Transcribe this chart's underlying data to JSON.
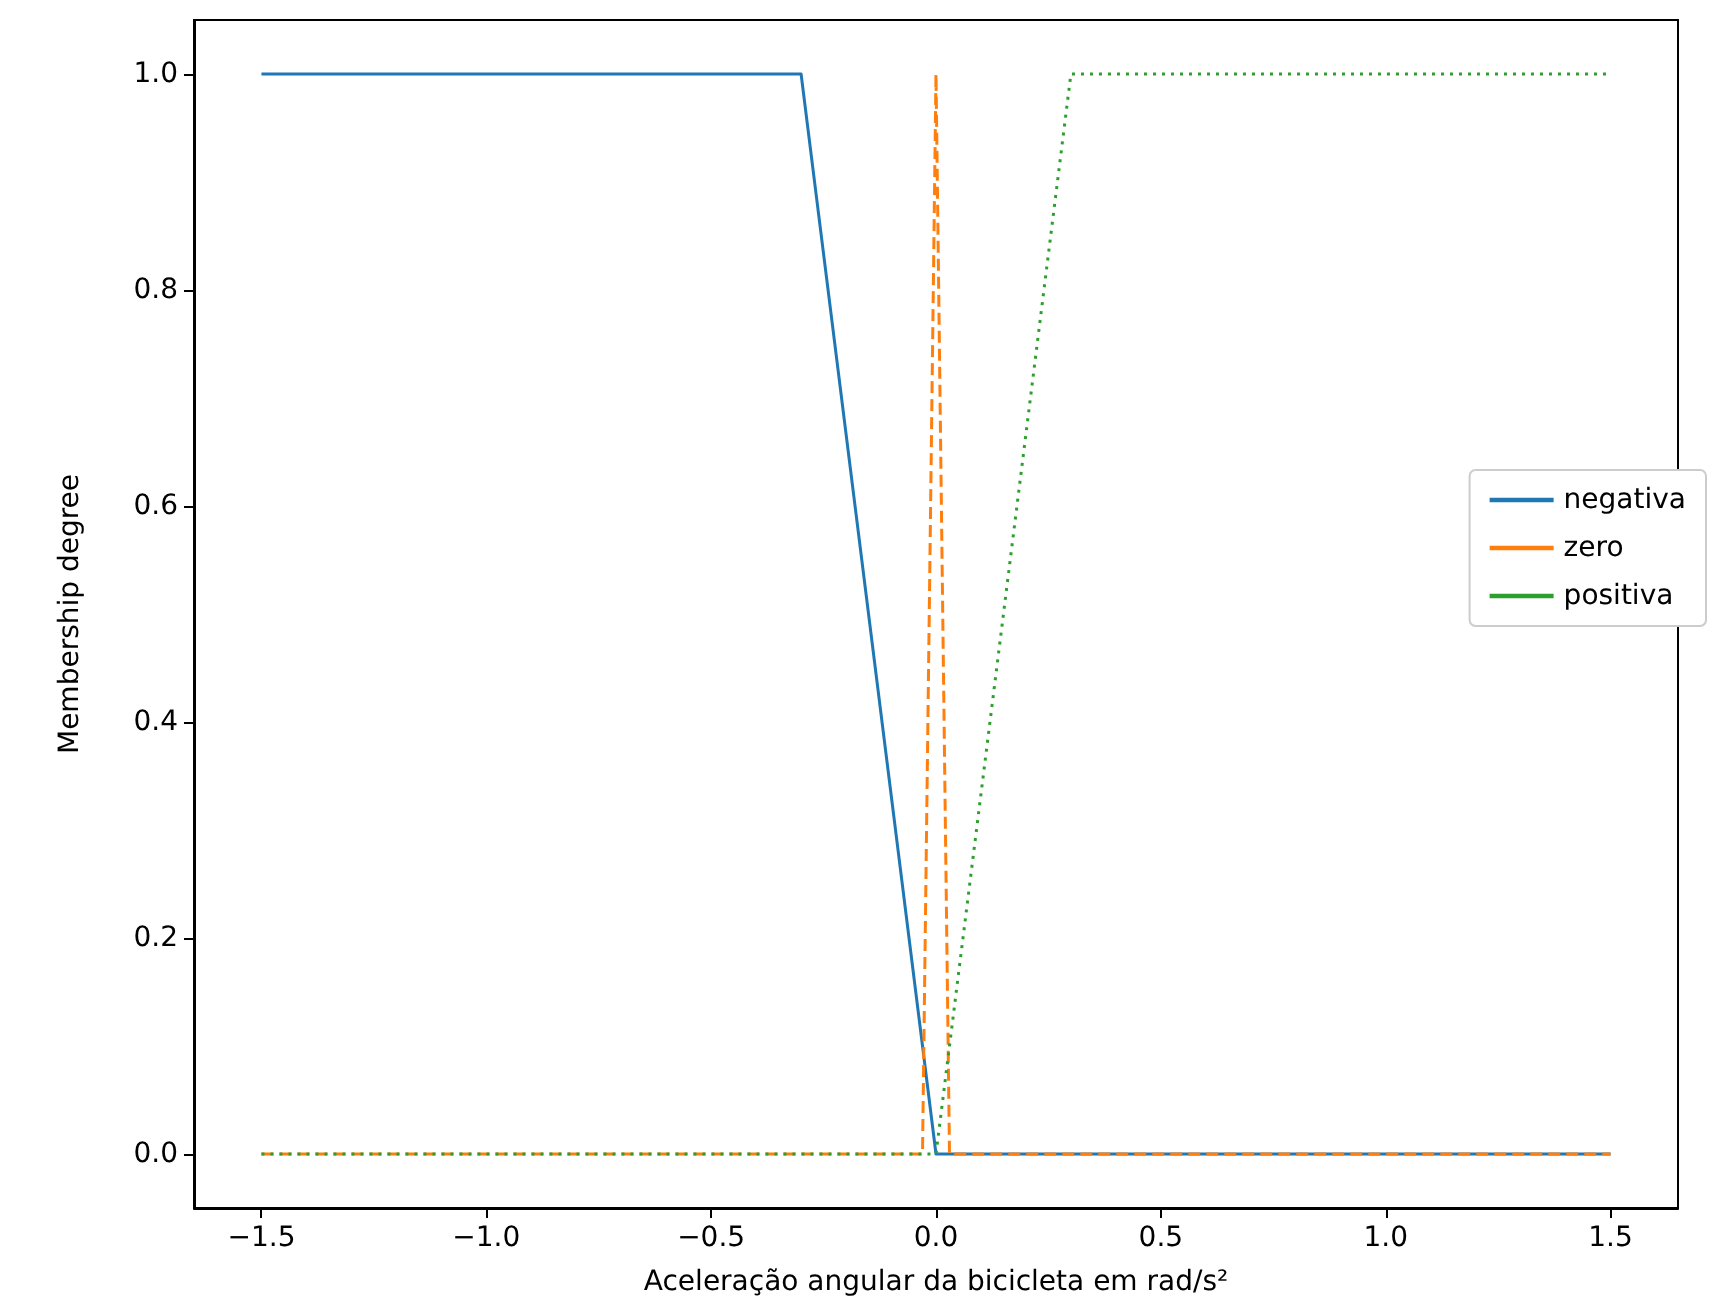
{
  "chart_data": {
    "type": "line",
    "xlabel": "Aceleração angular da bicicleta em rad/s²",
    "ylabel": "Membership degree",
    "xlim": [
      -1.65,
      1.65
    ],
    "ylim": [
      -0.05,
      1.05
    ],
    "xticks": [
      {
        "value": -1.5,
        "label": "−1.5"
      },
      {
        "value": -1.0,
        "label": "−1.0"
      },
      {
        "value": -0.5,
        "label": "−0.5"
      },
      {
        "value": 0,
        "label": "0.0"
      },
      {
        "value": 0.5,
        "label": "0.5"
      },
      {
        "value": 1.0,
        "label": "1.0"
      },
      {
        "value": 1.5,
        "label": "1.5"
      }
    ],
    "yticks": [
      {
        "value": 0,
        "label": "0.0"
      },
      {
        "value": 0.2,
        "label": "0.2"
      },
      {
        "value": 0.4,
        "label": "0.4"
      },
      {
        "value": 0.6,
        "label": "0.6"
      },
      {
        "value": 0.8,
        "label": "0.8"
      },
      {
        "value": 1.0,
        "label": "1.0"
      }
    ],
    "grid": false,
    "legend": "right",
    "marker": "none",
    "series": [
      {
        "name": "negativa",
        "color": "#1f77b4",
        "line_style": "solid",
        "x": [
          -1.5,
          -0.3,
          0,
          1.5
        ],
        "values": [
          1,
          1,
          0,
          0
        ]
      },
      {
        "name": "zero",
        "color": "#ff7f0e",
        "line_style": "dashed",
        "x": [
          -1.5,
          -0.03,
          0,
          0.03,
          1.5
        ],
        "values": [
          0,
          0,
          1,
          0,
          0
        ]
      },
      {
        "name": "positiva",
        "color": "#2ca02c",
        "line_style": "dotted",
        "x": [
          -1.5,
          0,
          0.3,
          1.5
        ],
        "values": [
          0,
          0,
          1,
          1
        ]
      }
    ]
  }
}
